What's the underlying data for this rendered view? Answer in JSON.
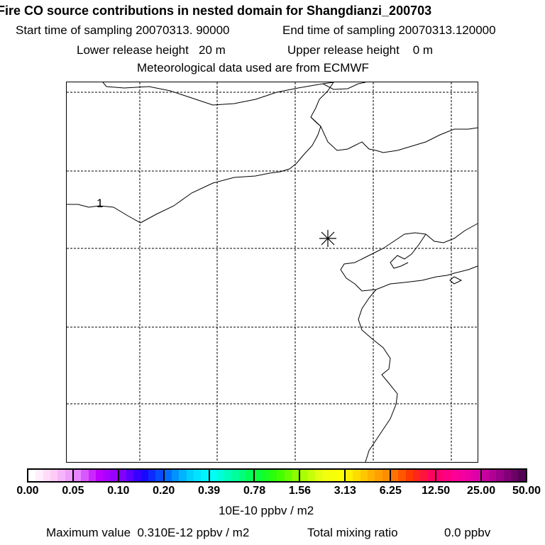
{
  "header": {
    "title": "Fire CO source contributions in nested domain for Shangdianzi_200703",
    "start_label": "Start time of sampling 20070313. 90000",
    "end_label": "End time of sampling 20070313.120000",
    "lower_label": "Lower release height   20 m",
    "upper_label": "Upper release height    0 m",
    "met_label": "Meteorological data used are from ECMWF"
  },
  "map": {
    "contour_label": "1",
    "receptor_marker": "star-icon"
  },
  "colorbar": {
    "ticks": [
      "0.00",
      "0.05",
      "0.10",
      "0.20",
      "0.39",
      "0.78",
      "1.56",
      "3.13",
      "6.25",
      "12.50",
      "25.00",
      "50.00"
    ],
    "anchors": [
      "#ffffff",
      "#ffccf5",
      "#e78aff",
      "#c000ff",
      "#8800ff",
      "#1a00ff",
      "#0066ff",
      "#00ccff",
      "#00ffff",
      "#00ffaa",
      "#00ff44",
      "#33ff00",
      "#99ff00",
      "#eeff11",
      "#ffff00",
      "#ffc000",
      "#ff8800",
      "#ff3300",
      "#ff0066",
      "#ff0099",
      "#dd00aa",
      "#990088",
      "#550055"
    ],
    "unit": "10E-10 ppbv / m2"
  },
  "footer": {
    "max_label": "Maximum value  0.310E-12 ppbv / m2",
    "total_label": "Total mixing ratio",
    "total_value": "0.0 ppbv"
  }
}
